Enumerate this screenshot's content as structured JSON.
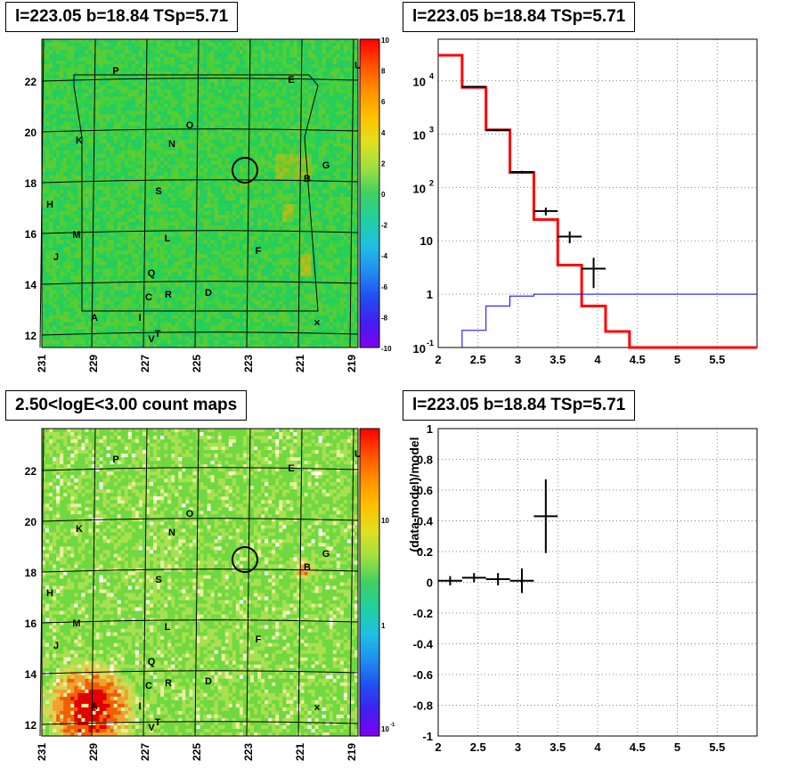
{
  "panels": {
    "tl_title": "l=223.05 b=18.84 TSp=5.71",
    "tr_title": "l=223.05 b=18.84 TSp=5.71",
    "bl_title": "2.50<logE<3.00 count maps",
    "br_title": "l=223.05 b=18.84 TSp=5.71"
  },
  "map_labels": {
    "xticks": [
      "231",
      "229",
      "227",
      "225",
      "223",
      "221",
      "219"
    ],
    "yticks": [
      "22",
      "20",
      "18",
      "16",
      "14",
      "12"
    ],
    "sources": [
      "P",
      "E",
      "U",
      "O",
      "N",
      "K",
      "G",
      "B",
      "S",
      "H",
      "M",
      "L",
      "J",
      "F",
      "Q",
      "C",
      "R",
      "D",
      "A",
      "I",
      "T",
      "V"
    ]
  },
  "colors": {
    "model": "#ff0000",
    "data": "#000000",
    "background_model": "#0000ff",
    "accent_map": "#3ccf3c"
  },
  "chart_data": [
    {
      "type": "heatmap",
      "name": "residual map",
      "xlabel": "",
      "ylabel": "",
      "xlim": [
        231,
        219
      ],
      "ylim": [
        12,
        23.8
      ],
      "colorbar_ticks": [
        "10",
        "8",
        "6",
        "4",
        "2",
        "0",
        "-2",
        "-4",
        "-6",
        "-8",
        "-10"
      ],
      "colorbar_range": [
        -10,
        10
      ],
      "circle_center": [
        223.05,
        18.84
      ]
    },
    {
      "type": "line",
      "name": "spectrum",
      "xlim": [
        2,
        6
      ],
      "ylim_log": [
        0.1,
        60000
      ],
      "yticks": [
        "10^4",
        "10^3",
        "10^2",
        "10",
        "1",
        "10^-1"
      ],
      "xticks": [
        "2",
        "2.5",
        "3",
        "3.5",
        "4",
        "4.5",
        "5",
        "5.5"
      ],
      "model_bins": [
        [
          2.0,
          2.3,
          30000
        ],
        [
          2.3,
          2.6,
          7500
        ],
        [
          2.6,
          2.9,
          1200
        ],
        [
          2.9,
          3.2,
          190
        ],
        [
          3.2,
          3.5,
          25
        ],
        [
          3.5,
          3.8,
          3.5
        ],
        [
          3.8,
          4.1,
          0.6
        ],
        [
          4.1,
          4.4,
          0.2
        ],
        [
          4.4,
          6.0,
          0.1
        ]
      ],
      "bkg_bins": [
        [
          2.3,
          2.6,
          0.21
        ],
        [
          2.6,
          2.9,
          0.6
        ],
        [
          2.9,
          3.2,
          0.92
        ],
        [
          3.2,
          6.0,
          1.0
        ]
      ],
      "data_points": [
        {
          "x": 2.45,
          "xerr": 0.15,
          "y": 7700,
          "ylo": 7500,
          "yhi": 7900
        },
        {
          "x": 2.75,
          "xerr": 0.15,
          "y": 1180,
          "ylo": 1130,
          "yhi": 1230
        },
        {
          "x": 3.05,
          "xerr": 0.15,
          "y": 195,
          "ylo": 185,
          "yhi": 205
        },
        {
          "x": 3.35,
          "xerr": 0.15,
          "y": 36,
          "ylo": 30,
          "yhi": 42
        },
        {
          "x": 3.65,
          "xerr": 0.15,
          "y": 12,
          "ylo": 9,
          "yhi": 15
        },
        {
          "x": 3.95,
          "xerr": 0.15,
          "y": 3,
          "ylo": 1.3,
          "yhi": 4.8
        }
      ]
    },
    {
      "type": "heatmap",
      "name": "count map",
      "xlim": [
        231,
        219
      ],
      "ylim": [
        12,
        23.8
      ],
      "colorbar_ticks": [
        "10",
        "1",
        "10^-1"
      ],
      "hot_spots": [
        {
          "l": 229.0,
          "b": 13.2,
          "level": "high"
        },
        {
          "l": 220.8,
          "b": 18.5,
          "level": "medium"
        }
      ],
      "circle_center": [
        223.05,
        18.84
      ]
    },
    {
      "type": "scatter",
      "name": "residual ratio",
      "ylabel": "(data-model)/model",
      "xlim": [
        2,
        6
      ],
      "ylim": [
        -1,
        1
      ],
      "yticks": [
        "1",
        "0.8",
        "0.6",
        "0.4",
        "0.2",
        "0",
        "-0.2",
        "-0.4",
        "-0.6",
        "-0.8",
        "-1"
      ],
      "xticks": [
        "2",
        "2.5",
        "3",
        "3.5",
        "4",
        "4.5",
        "5",
        "5.5"
      ],
      "points": [
        {
          "x": 2.15,
          "xerr": 0.15,
          "y": 0.01,
          "yerr": 0.03
        },
        {
          "x": 2.45,
          "xerr": 0.15,
          "y": 0.03,
          "yerr": 0.03
        },
        {
          "x": 2.75,
          "xerr": 0.15,
          "y": 0.02,
          "yerr": 0.04
        },
        {
          "x": 3.05,
          "xerr": 0.15,
          "y": 0.01,
          "yerr": 0.08
        },
        {
          "x": 3.35,
          "xerr": 0.15,
          "y": 0.43,
          "yerr": 0.24
        }
      ]
    }
  ]
}
